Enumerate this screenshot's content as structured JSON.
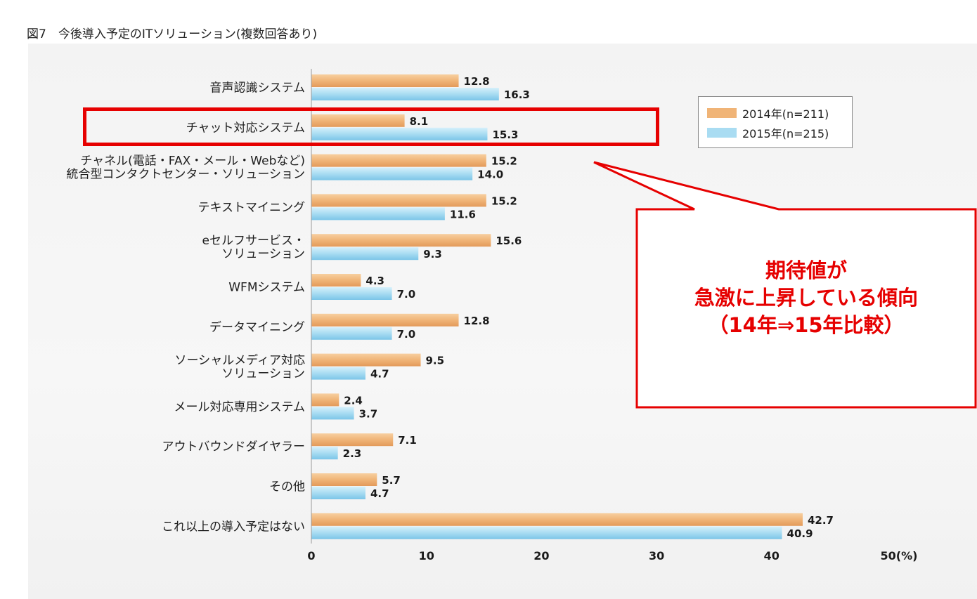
{
  "figure_title": "図7　今後導入予定のITソリューション(複数回答あり)",
  "legend": [
    {
      "label": "2014年(n=211)",
      "color": "#f0b477"
    },
    {
      "label": "2015年(n=215)",
      "color": "#a9dcf2"
    }
  ],
  "callout": {
    "lines": [
      "期待値が",
      "急激に上昇している傾向",
      "（14年⇒15年比較）"
    ],
    "color": "#e60000"
  },
  "chart_data": {
    "type": "bar",
    "orientation": "horizontal",
    "title": "図7　今後導入予定のITソリューション(複数回答あり)",
    "categories": [
      [
        "音声認識システム"
      ],
      [
        "チャット対応システム"
      ],
      [
        "チャネル(電話・FAX・メール・Webなど)",
        "統合型コンタクトセンター・ソリューション"
      ],
      [
        "テキストマイニング"
      ],
      [
        "eセルフサービス・",
        "ソリューション"
      ],
      [
        "WFMシステム"
      ],
      [
        "データマイニング"
      ],
      [
        "ソーシャルメディア対応",
        "ソリューション"
      ],
      [
        "メール対応専用システム"
      ],
      [
        "アウトバウンドダイヤラー"
      ],
      [
        "その他"
      ],
      [
        "これ以上の導入予定はない"
      ]
    ],
    "series": [
      {
        "name": "2014年(n=211)",
        "color": "#f0b477",
        "values": [
          12.8,
          8.1,
          15.2,
          15.2,
          15.6,
          4.3,
          12.8,
          9.5,
          2.4,
          7.1,
          5.7,
          42.7
        ],
        "labels": [
          "12.8",
          "8.1",
          "15.2",
          "15.2",
          "15.6",
          "4.3",
          "12.8",
          "9.5",
          "2.4",
          "7.1",
          "5.7",
          "42.7"
        ]
      },
      {
        "name": "2015年(n=215)",
        "color": "#a9dcf2",
        "values": [
          16.3,
          15.3,
          14.0,
          11.6,
          9.3,
          7.0,
          7.0,
          4.7,
          3.7,
          2.3,
          4.7,
          40.9
        ],
        "labels": [
          "16.3",
          "15.3",
          "14.0",
          "11.6",
          "9.3",
          "7.0",
          "7.0",
          "4.7",
          "3.7",
          "2.3",
          "4.7",
          "40.9"
        ]
      }
    ],
    "xlim": [
      0,
      50
    ],
    "xticks": [
      "0",
      "10",
      "20",
      "30",
      "40",
      "50(%)"
    ],
    "xtick_values": [
      0,
      10,
      20,
      30,
      40,
      50
    ],
    "legend_position": "top-right",
    "highlighted_category": "チャット対応システム",
    "grid": false
  }
}
